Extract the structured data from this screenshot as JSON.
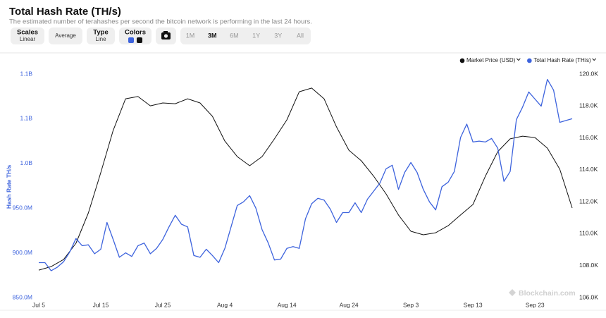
{
  "header": {
    "title": "Total Hash Rate (TH/s)",
    "subtitle": "The estimated number of terahashes per second the bitcoin network is performing in the last 24 hours."
  },
  "toolbar": {
    "scales": {
      "label": "Scales",
      "value": "Linear"
    },
    "average": "Average",
    "type": {
      "label": "Type",
      "value": "Line"
    },
    "colors": "Colors",
    "ranges": [
      "1M",
      "3M",
      "6M",
      "1Y",
      "3Y",
      "All"
    ],
    "active_range": "3M"
  },
  "chart_data": {
    "type": "line",
    "ylabel": "Hash Rate TH/s",
    "watermark": "Blockchain.com",
    "xlim": [
      0,
      86
    ],
    "xticks": [
      {
        "value": 0,
        "label": "Jul 5"
      },
      {
        "value": 10,
        "label": "Jul 15"
      },
      {
        "value": 20,
        "label": "Jul 25"
      },
      {
        "value": 30,
        "label": "Aug 4"
      },
      {
        "value": 40,
        "label": "Aug 14"
      },
      {
        "value": 50,
        "label": "Aug 24"
      },
      {
        "value": 60,
        "label": "Sep 3"
      },
      {
        "value": 70,
        "label": "Sep 13"
      },
      {
        "value": 80,
        "label": "Sep 23"
      }
    ],
    "ylim": [
      850000000,
      1100000000
    ],
    "yticks": [
      {
        "value": 850000000,
        "label": "850.0M"
      },
      {
        "value": 900000000,
        "label": "900.0M"
      },
      {
        "value": 950000000,
        "label": "950.0M"
      },
      {
        "value": 1000000000,
        "label": "1.0B"
      },
      {
        "value": 1050000000,
        "label": "1.1B"
      },
      {
        "value": 1100000000,
        "label": "1.1B"
      }
    ],
    "y2lim": [
      106000,
      120000
    ],
    "y2ticks": [
      {
        "value": 106000,
        "label": "106.0K"
      },
      {
        "value": 108000,
        "label": "108.0K"
      },
      {
        "value": 110000,
        "label": "110.0K"
      },
      {
        "value": 112000,
        "label": "112.0K"
      },
      {
        "value": 114000,
        "label": "114.0K"
      },
      {
        "value": 116000,
        "label": "116.0K"
      },
      {
        "value": 118000,
        "label": "118.0K"
      },
      {
        "value": 120000,
        "label": "120.0K"
      }
    ],
    "series": [
      {
        "name": "Market Price (USD)",
        "color": "#111111",
        "axis": "y2",
        "x": [
          0,
          2,
          4,
          6,
          8,
          10,
          12,
          14,
          16,
          18,
          20,
          22,
          24,
          26,
          28,
          30,
          32,
          34,
          36,
          38,
          40,
          42,
          44,
          46,
          48,
          50,
          52,
          54,
          56,
          58,
          60,
          62,
          64,
          66,
          68,
          70,
          72,
          74,
          76,
          78,
          80,
          82,
          84,
          86
        ],
        "values": [
          107720,
          107940,
          108380,
          109400,
          111300,
          113820,
          116470,
          118450,
          118590,
          118010,
          118190,
          118140,
          118450,
          118190,
          117350,
          115800,
          114830,
          114260,
          114830,
          115940,
          117130,
          118890,
          119120,
          118450,
          116690,
          115230,
          114570,
          113600,
          112490,
          111170,
          110150,
          109930,
          110060,
          110500,
          111170,
          111830,
          113600,
          115140,
          115940,
          116110,
          116020,
          115360,
          114040,
          111610
        ]
      },
      {
        "name": "Total Hash Rate (TH/s)",
        "color": "#3d63dd",
        "x": [
          0,
          1,
          2,
          3,
          4,
          5,
          6,
          7,
          8,
          9,
          10,
          11,
          12,
          13,
          14,
          15,
          16,
          17,
          18,
          19,
          20,
          21,
          22,
          23,
          24,
          25,
          26,
          27,
          28,
          29,
          30,
          31,
          32,
          33,
          34,
          35,
          36,
          37,
          38,
          39,
          40,
          41,
          42,
          43,
          44,
          45,
          46,
          47,
          48,
          49,
          50,
          51,
          52,
          53,
          54,
          55,
          56,
          57,
          58,
          59,
          60,
          61,
          62,
          63,
          64,
          65,
          66,
          67,
          68,
          69,
          70,
          71,
          72,
          73,
          74,
          75,
          76,
          77,
          78,
          79,
          80,
          81,
          82,
          83,
          84,
          85,
          86
        ],
        "values": [
          889000000,
          889000000,
          880000000,
          884000000,
          890000000,
          901000000,
          916000000,
          908000000,
          909000000,
          899000000,
          904000000,
          934000000,
          915000000,
          895000000,
          900000000,
          896000000,
          908000000,
          911000000,
          899000000,
          905000000,
          915000000,
          929000000,
          942000000,
          932000000,
          929000000,
          897000000,
          895000000,
          904000000,
          897000000,
          889000000,
          905000000,
          929000000,
          953000000,
          957000000,
          964000000,
          950000000,
          926000000,
          911000000,
          892000000,
          893000000,
          905000000,
          907000000,
          905000000,
          938000000,
          955000000,
          961000000,
          959000000,
          949000000,
          934000000,
          945000000,
          945000000,
          956000000,
          945000000,
          960000000,
          969000000,
          978000000,
          994000000,
          998000000,
          971000000,
          990000000,
          1001000000,
          990000000,
          971000000,
          957000000,
          948000000,
          974000000,
          979000000,
          991000000,
          1029000000,
          1044000000,
          1024000000,
          1025000000,
          1024000000,
          1028000000,
          1017000000,
          980000000,
          991000000,
          1049000000,
          1063000000,
          1080000000,
          1072000000,
          1064000000,
          1094000000,
          1082000000,
          1046000000,
          1048000000,
          1050000000
        ]
      }
    ]
  }
}
